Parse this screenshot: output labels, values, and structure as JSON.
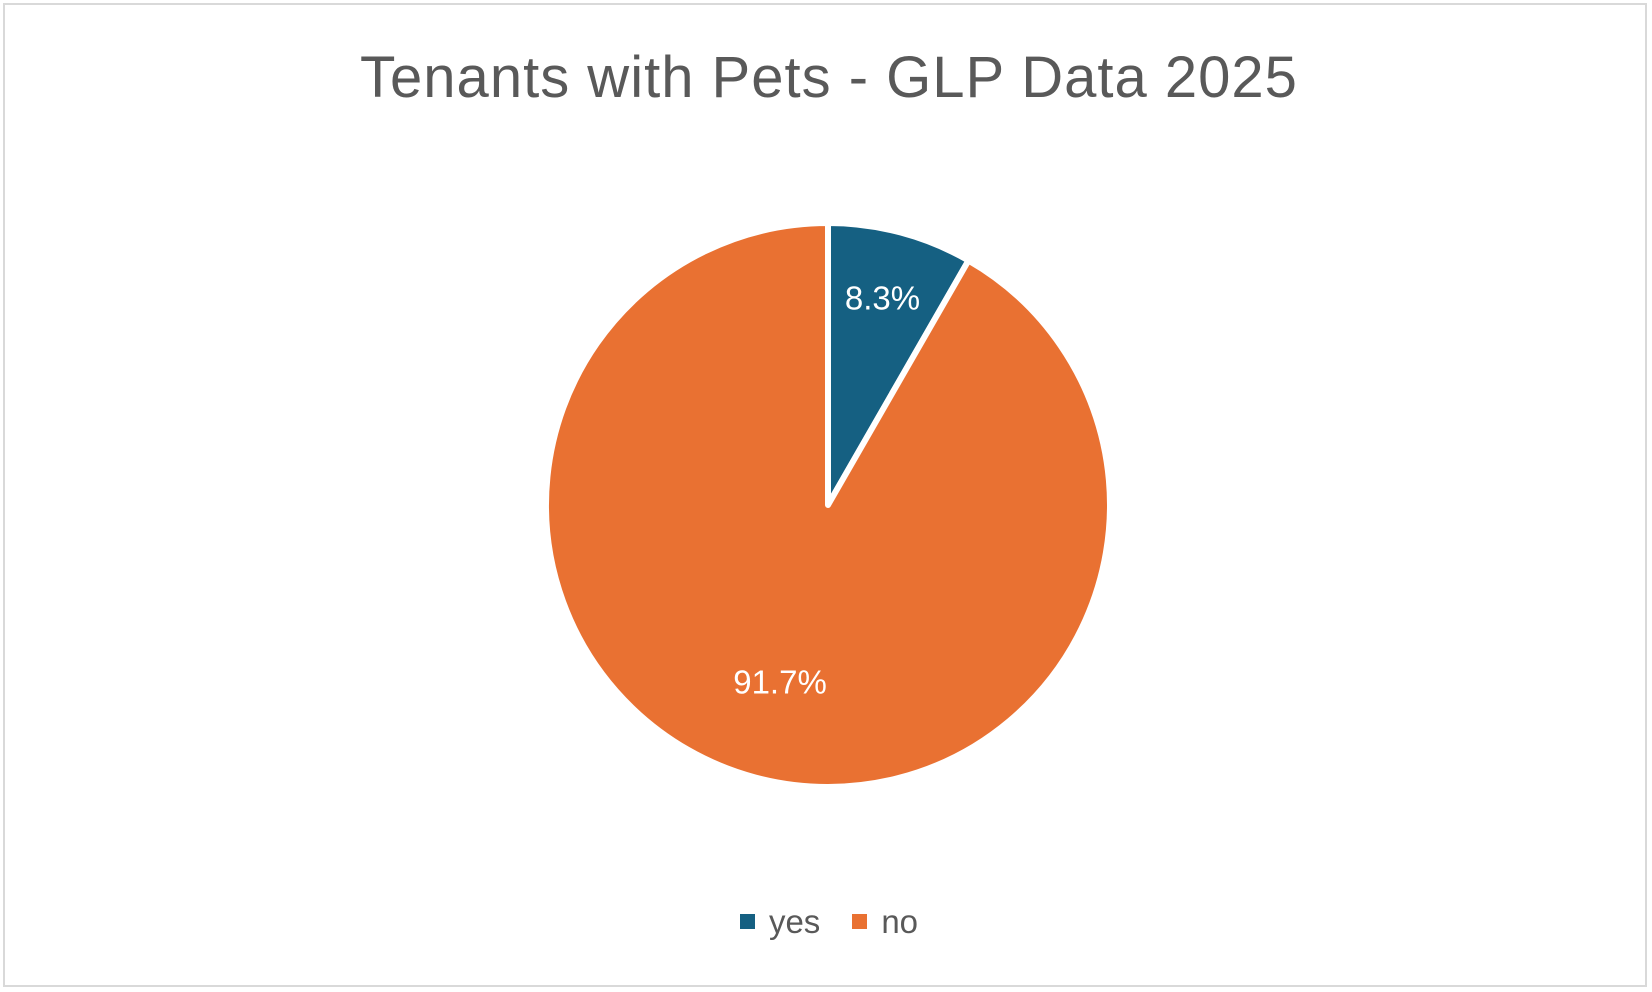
{
  "chart_data": {
    "type": "pie",
    "title": "Tenants with Pets - GLP Data 2025",
    "categories": [
      "yes",
      "no"
    ],
    "values": [
      8.3,
      91.7
    ],
    "data_labels": [
      "8.3%",
      "91.7%"
    ],
    "colors": [
      "#156082",
      "#E97132"
    ],
    "legend_position": "bottom",
    "start_angle": "12 o'clock",
    "direction": "clockwise"
  }
}
